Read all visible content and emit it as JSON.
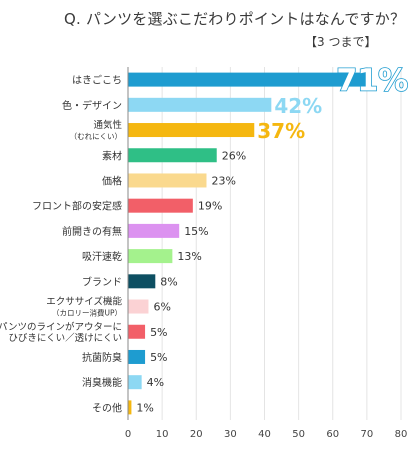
{
  "title": "Q. パンツを選ぶこだわりポイントはなんですか？",
  "subtitle": "【3 つまで】",
  "chart_data": {
    "type": "bar",
    "orientation": "horizontal",
    "title": "Q. パンツを選ぶこだわりポイントはなんですか？",
    "subtitle": "【3 つまで】",
    "xlim": [
      0,
      80
    ],
    "x_ticks": [
      0,
      10,
      20,
      30,
      40,
      50,
      60,
      70,
      80
    ],
    "grid": true,
    "categories": [
      {
        "label": "はきごこち",
        "sublabel": "",
        "value": 71,
        "value_label": "71%",
        "color": "#1e9cd0",
        "label_style": "huge"
      },
      {
        "label": "色・デザイン",
        "sublabel": "",
        "value": 42,
        "value_label": "42%",
        "color": "#8dd8f3",
        "label_style": "large"
      },
      {
        "label": "通気性",
        "sublabel": "（むれにくい）",
        "value": 37,
        "value_label": "37%",
        "color": "#f5b710",
        "label_style": "large"
      },
      {
        "label": "素材",
        "sublabel": "",
        "value": 26,
        "value_label": "26%",
        "color": "#2fbf86",
        "label_style": "normal"
      },
      {
        "label": "価格",
        "sublabel": "",
        "value": 23,
        "value_label": "23%",
        "color": "#fad98e",
        "label_style": "normal"
      },
      {
        "label": "フロント部の安定感",
        "sublabel": "",
        "value": 19,
        "value_label": "19%",
        "color": "#f25f68",
        "label_style": "normal"
      },
      {
        "label": "前開きの有無",
        "sublabel": "",
        "value": 15,
        "value_label": "15%",
        "color": "#dc92f0",
        "label_style": "normal"
      },
      {
        "label": "吸汗速乾",
        "sublabel": "",
        "value": 13,
        "value_label": "13%",
        "color": "#a4f28d",
        "label_style": "normal"
      },
      {
        "label": "ブランド",
        "sublabel": "",
        "value": 8,
        "value_label": "8%",
        "color": "#0d4f62",
        "label_style": "normal"
      },
      {
        "label": "エクササイズ機能",
        "sublabel": "（カロリー消費UP）",
        "value": 6,
        "value_label": "6%",
        "color": "#fbd2d4",
        "label_style": "normal"
      },
      {
        "label": "パンツのラインがアウターに",
        "sublabel": "ひびきにくい／透けにくい",
        "value": 5,
        "value_label": "5%",
        "color": "#f25f68",
        "label_style": "normal"
      },
      {
        "label": "抗菌防臭",
        "sublabel": "",
        "value": 5,
        "value_label": "5%",
        "color": "#1e9cd0",
        "label_style": "normal"
      },
      {
        "label": "消臭機能",
        "sublabel": "",
        "value": 4,
        "value_label": "4%",
        "color": "#8dd8f3",
        "label_style": "normal"
      },
      {
        "label": "その他",
        "sublabel": "",
        "value": 1,
        "value_label": "1%",
        "color": "#f5b710",
        "label_style": "normal"
      }
    ]
  }
}
